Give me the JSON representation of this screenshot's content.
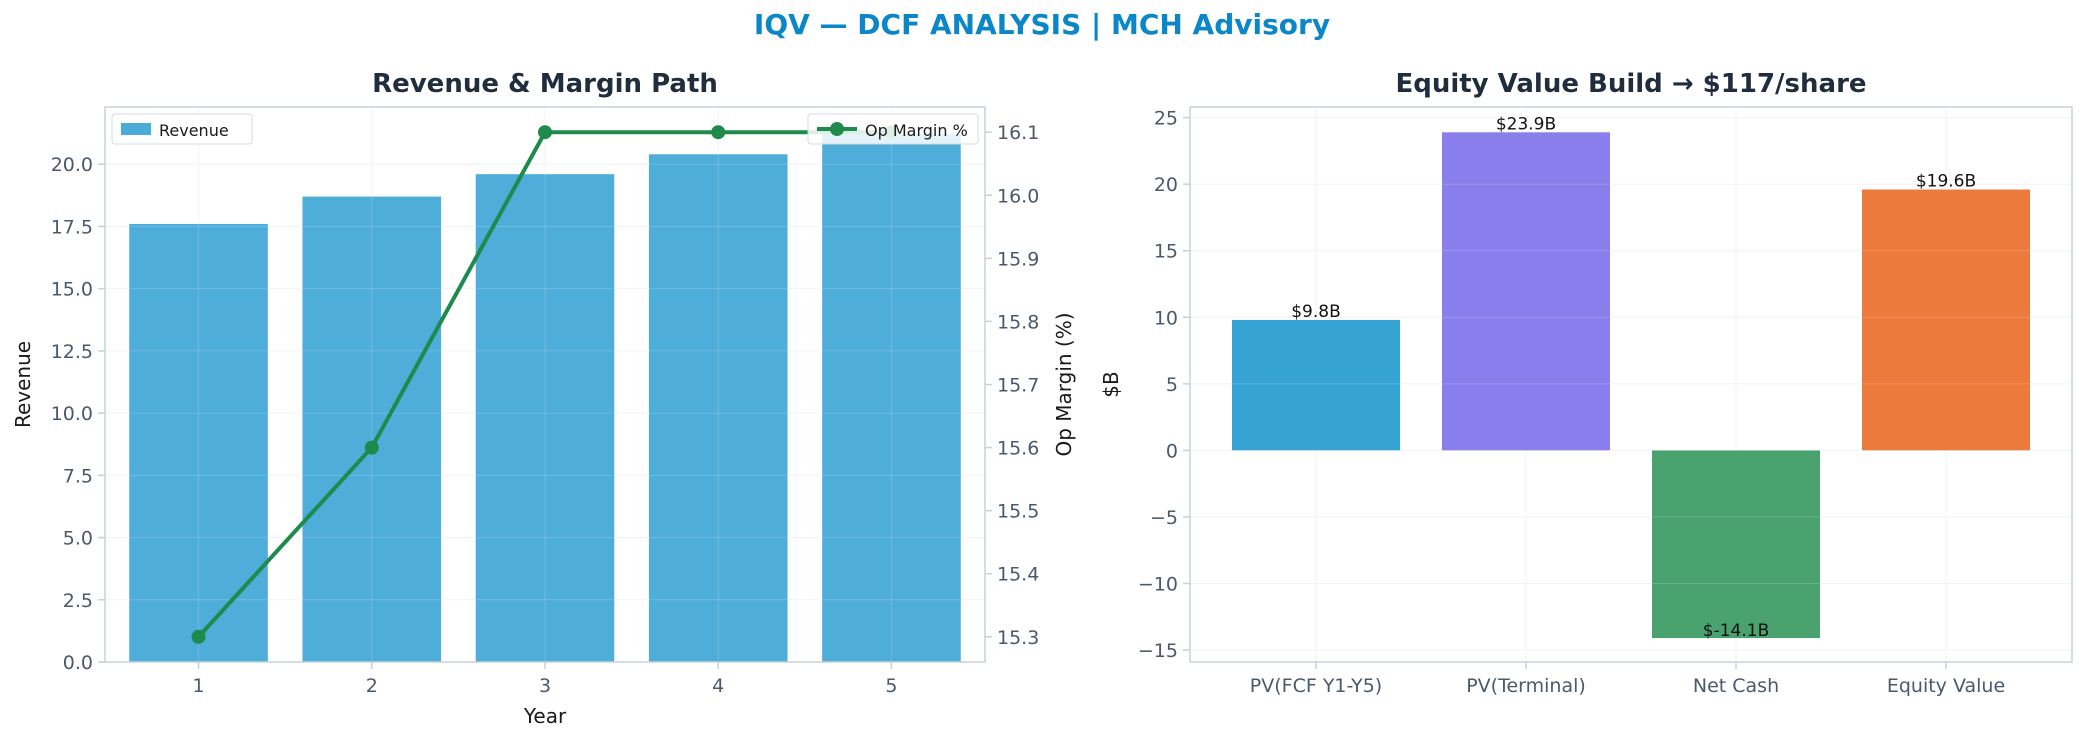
{
  "suptitle": "IQV — DCF ANALYSIS | MCH Advisory",
  "colors": {
    "title": "#1f2d3d",
    "tick": "#4a5a6a",
    "spine": "#c8d0da",
    "grid": "#eef1f4",
    "revenue_bar": "#4aabd8",
    "margin_line": "#1e8a4c"
  },
  "chart_data": [
    {
      "type": "bar",
      "title": "Revenue & Margin Path",
      "xlabel": "Year",
      "ylabel": "Revenue",
      "y2label": "Op Margin (%)",
      "categories": [
        "1",
        "2",
        "3",
        "4",
        "5"
      ],
      "ylim": [
        0,
        22.3
      ],
      "y_ticks": [
        0.0,
        2.5,
        5.0,
        7.5,
        10.0,
        12.5,
        15.0,
        17.5,
        20.0
      ],
      "y2lim": [
        15.26,
        16.14
      ],
      "y2_ticks": [
        15.3,
        15.4,
        15.5,
        15.6,
        15.7,
        15.8,
        15.9,
        16.0,
        16.1
      ],
      "grid": true,
      "series": [
        {
          "name": "Revenue",
          "type": "bar",
          "axis": "left",
          "color": "#4aabd8",
          "values": [
            17.6,
            18.7,
            19.6,
            20.4,
            21.2
          ]
        },
        {
          "name": "Op Margin %",
          "type": "line",
          "axis": "right",
          "color": "#1e8a4c",
          "values": [
            15.3,
            15.6,
            16.1,
            16.1,
            16.1
          ]
        }
      ],
      "legends": [
        {
          "placement": "top-left",
          "series": "Revenue"
        },
        {
          "placement": "top-right",
          "series": "Op Margin %"
        }
      ]
    },
    {
      "type": "bar",
      "title": "Equity Value Build → $117/share",
      "xlabel": "",
      "ylabel": "$B",
      "categories": [
        "PV(FCF Y1-Y5)",
        "PV(Terminal)",
        "Net Cash",
        "Equity Value"
      ],
      "values": [
        9.8,
        23.9,
        -14.1,
        19.6
      ],
      "data_labels": [
        "$9.8B",
        "$23.9B",
        "$-14.1B",
        "$19.6B"
      ],
      "colors": [
        "#35a3d4",
        "#8a7eec",
        "#4aa36e",
        "#ec7a3c"
      ],
      "ylim": [
        -15.9,
        25.8
      ],
      "y_ticks": [
        -15,
        -10,
        -5,
        0,
        5,
        10,
        15,
        20,
        25
      ],
      "grid": true
    }
  ]
}
